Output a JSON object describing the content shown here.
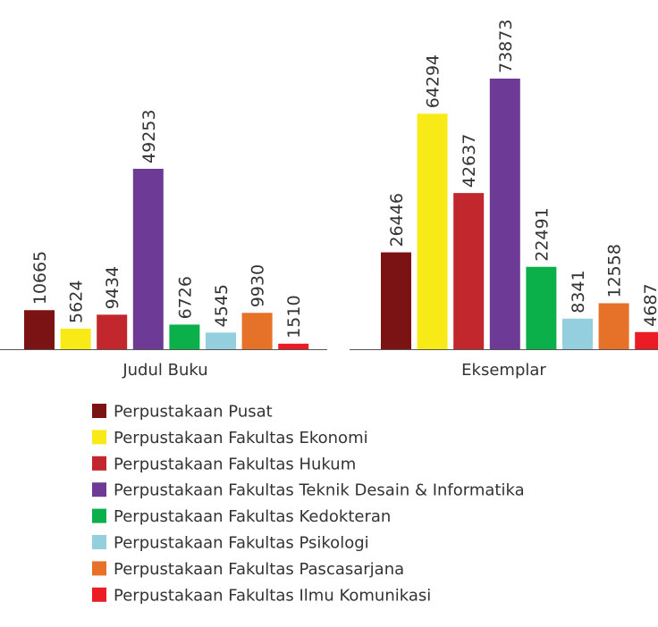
{
  "chart_data": {
    "type": "bar",
    "categories": [
      "Judul Buku",
      "Eksemplar"
    ],
    "series": [
      {
        "name": "Perpustakaan Pusat",
        "color": "#7b1315",
        "values": [
          10665,
          26446
        ]
      },
      {
        "name": "Perpustakaan Fakultas Ekonomi",
        "color": "#f7ea17",
        "values": [
          5624,
          64294
        ]
      },
      {
        "name": "Perpustakaan Fakultas Hukum",
        "color": "#c1272d",
        "values": [
          9434,
          42637
        ]
      },
      {
        "name": "Perpustakaan Fakultas Teknik Desain & Informatika",
        "color": "#6d3a96",
        "values": [
          49253,
          73873
        ]
      },
      {
        "name": "Perpustakaan Fakultas Kedokteran",
        "color": "#0bb04b",
        "values": [
          6726,
          22491
        ]
      },
      {
        "name": "Perpustakaan Fakultas Psikologi",
        "color": "#93cfdd",
        "values": [
          4545,
          8341
        ]
      },
      {
        "name": "Perpustakaan Fakultas Pascasarjana",
        "color": "#e6722a",
        "values": [
          9930,
          12558
        ]
      },
      {
        "name": "Perpustakaan Fakultas Ilmu Komunikasi",
        "color": "#ec1c24",
        "values": [
          1510,
          4687
        ]
      }
    ]
  }
}
